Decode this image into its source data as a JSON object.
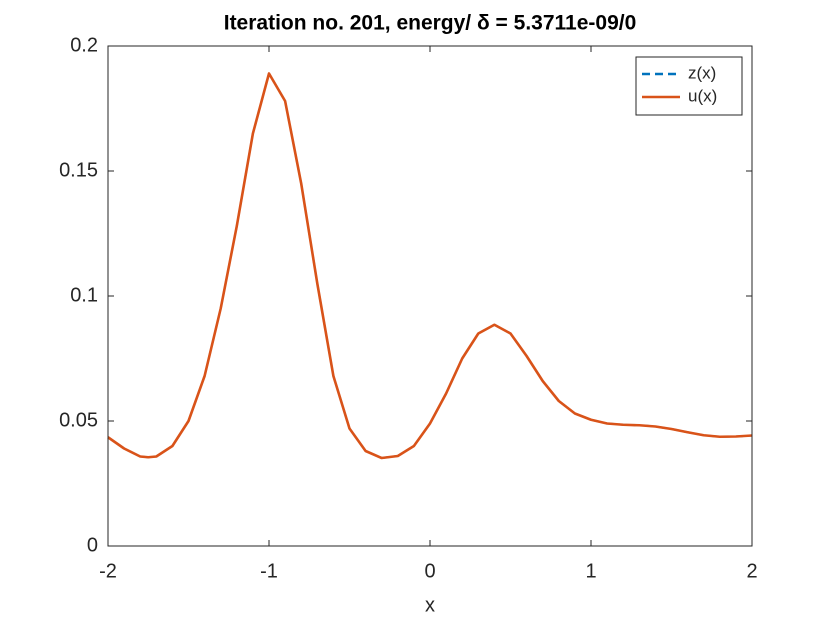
{
  "chart_data": {
    "type": "line",
    "title": "Iteration no. 201, energy/ δ = 5.3711e-09/0",
    "x_label": "x",
    "x": [
      -2,
      -1.9,
      -1.8,
      -1.75,
      -1.7,
      -1.6,
      -1.5,
      -1.4,
      -1.3,
      -1.2,
      -1.1,
      -1.0,
      -0.9,
      -0.8,
      -0.7,
      -0.6,
      -0.5,
      -0.4,
      -0.3,
      -0.2,
      -0.1,
      0,
      0.1,
      0.2,
      0.3,
      0.4,
      0.5,
      0.6,
      0.7,
      0.8,
      0.9,
      1.0,
      1.1,
      1.2,
      1.3,
      1.4,
      1.5,
      1.6,
      1.7,
      1.8,
      1.9,
      2.0
    ],
    "series": [
      {
        "name": "z(x)",
        "color": "#0072bd",
        "dashed": true,
        "values": [
          0.0435,
          0.039,
          0.0358,
          0.0355,
          0.0358,
          0.04,
          0.05,
          0.068,
          0.095,
          0.128,
          0.165,
          0.189,
          0.178,
          0.145,
          0.105,
          0.068,
          0.047,
          0.038,
          0.0352,
          0.036,
          0.04,
          0.049,
          0.061,
          0.075,
          0.085,
          0.0885,
          0.085,
          0.076,
          0.066,
          0.058,
          0.053,
          0.0505,
          0.049,
          0.0485,
          0.0483,
          0.0478,
          0.0468,
          0.0455,
          0.0443,
          0.0437,
          0.0438,
          0.0442
        ]
      },
      {
        "name": "u(x)",
        "color": "#d95319",
        "dashed": false,
        "values": [
          0.0435,
          0.039,
          0.0358,
          0.0355,
          0.0358,
          0.04,
          0.05,
          0.068,
          0.095,
          0.128,
          0.165,
          0.189,
          0.178,
          0.145,
          0.105,
          0.068,
          0.047,
          0.038,
          0.0352,
          0.036,
          0.04,
          0.049,
          0.061,
          0.075,
          0.085,
          0.0885,
          0.085,
          0.076,
          0.066,
          0.058,
          0.053,
          0.0505,
          0.049,
          0.0485,
          0.0483,
          0.0478,
          0.0468,
          0.0455,
          0.0443,
          0.0437,
          0.0438,
          0.0442
        ]
      }
    ],
    "xlim": [
      -2,
      2
    ],
    "xticks": [
      -2,
      -1,
      0,
      1,
      2
    ],
    "ylim": [
      0,
      0.2
    ],
    "yticks": [
      0,
      0.05,
      0.1,
      0.15,
      0.2
    ],
    "grid": false,
    "legend": "top-right"
  }
}
